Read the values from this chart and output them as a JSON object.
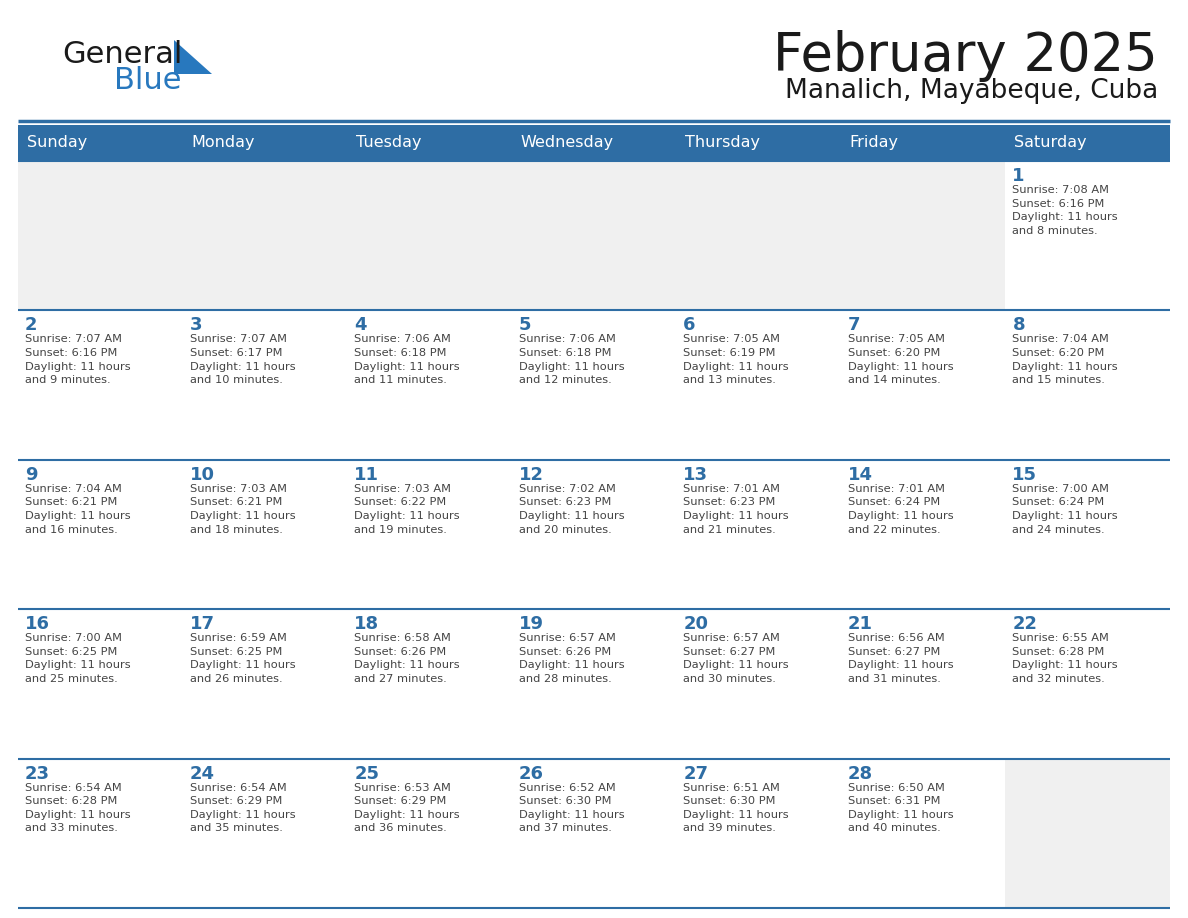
{
  "title": "February 2025",
  "subtitle": "Manalich, Mayabeque, Cuba",
  "header_bg": "#2E6DA4",
  "header_text_color": "#FFFFFF",
  "cell_bg_light": "#F0F0F0",
  "cell_bg_white": "#FFFFFF",
  "grid_line_color": "#2E6DA4",
  "day_headers": [
    "Sunday",
    "Monday",
    "Tuesday",
    "Wednesday",
    "Thursday",
    "Friday",
    "Saturday"
  ],
  "title_color": "#1a1a1a",
  "subtitle_color": "#1a1a1a",
  "number_color": "#2E6DA4",
  "text_color": "#444444",
  "logo_general_color": "#1a1a1a",
  "logo_blue_color": "#2878BE",
  "weeks": [
    [
      {
        "day": null,
        "info": null
      },
      {
        "day": null,
        "info": null
      },
      {
        "day": null,
        "info": null
      },
      {
        "day": null,
        "info": null
      },
      {
        "day": null,
        "info": null
      },
      {
        "day": null,
        "info": null
      },
      {
        "day": 1,
        "info": "Sunrise: 7:08 AM\nSunset: 6:16 PM\nDaylight: 11 hours\nand 8 minutes."
      }
    ],
    [
      {
        "day": 2,
        "info": "Sunrise: 7:07 AM\nSunset: 6:16 PM\nDaylight: 11 hours\nand 9 minutes."
      },
      {
        "day": 3,
        "info": "Sunrise: 7:07 AM\nSunset: 6:17 PM\nDaylight: 11 hours\nand 10 minutes."
      },
      {
        "day": 4,
        "info": "Sunrise: 7:06 AM\nSunset: 6:18 PM\nDaylight: 11 hours\nand 11 minutes."
      },
      {
        "day": 5,
        "info": "Sunrise: 7:06 AM\nSunset: 6:18 PM\nDaylight: 11 hours\nand 12 minutes."
      },
      {
        "day": 6,
        "info": "Sunrise: 7:05 AM\nSunset: 6:19 PM\nDaylight: 11 hours\nand 13 minutes."
      },
      {
        "day": 7,
        "info": "Sunrise: 7:05 AM\nSunset: 6:20 PM\nDaylight: 11 hours\nand 14 minutes."
      },
      {
        "day": 8,
        "info": "Sunrise: 7:04 AM\nSunset: 6:20 PM\nDaylight: 11 hours\nand 15 minutes."
      }
    ],
    [
      {
        "day": 9,
        "info": "Sunrise: 7:04 AM\nSunset: 6:21 PM\nDaylight: 11 hours\nand 16 minutes."
      },
      {
        "day": 10,
        "info": "Sunrise: 7:03 AM\nSunset: 6:21 PM\nDaylight: 11 hours\nand 18 minutes."
      },
      {
        "day": 11,
        "info": "Sunrise: 7:03 AM\nSunset: 6:22 PM\nDaylight: 11 hours\nand 19 minutes."
      },
      {
        "day": 12,
        "info": "Sunrise: 7:02 AM\nSunset: 6:23 PM\nDaylight: 11 hours\nand 20 minutes."
      },
      {
        "day": 13,
        "info": "Sunrise: 7:01 AM\nSunset: 6:23 PM\nDaylight: 11 hours\nand 21 minutes."
      },
      {
        "day": 14,
        "info": "Sunrise: 7:01 AM\nSunset: 6:24 PM\nDaylight: 11 hours\nand 22 minutes."
      },
      {
        "day": 15,
        "info": "Sunrise: 7:00 AM\nSunset: 6:24 PM\nDaylight: 11 hours\nand 24 minutes."
      }
    ],
    [
      {
        "day": 16,
        "info": "Sunrise: 7:00 AM\nSunset: 6:25 PM\nDaylight: 11 hours\nand 25 minutes."
      },
      {
        "day": 17,
        "info": "Sunrise: 6:59 AM\nSunset: 6:25 PM\nDaylight: 11 hours\nand 26 minutes."
      },
      {
        "day": 18,
        "info": "Sunrise: 6:58 AM\nSunset: 6:26 PM\nDaylight: 11 hours\nand 27 minutes."
      },
      {
        "day": 19,
        "info": "Sunrise: 6:57 AM\nSunset: 6:26 PM\nDaylight: 11 hours\nand 28 minutes."
      },
      {
        "day": 20,
        "info": "Sunrise: 6:57 AM\nSunset: 6:27 PM\nDaylight: 11 hours\nand 30 minutes."
      },
      {
        "day": 21,
        "info": "Sunrise: 6:56 AM\nSunset: 6:27 PM\nDaylight: 11 hours\nand 31 minutes."
      },
      {
        "day": 22,
        "info": "Sunrise: 6:55 AM\nSunset: 6:28 PM\nDaylight: 11 hours\nand 32 minutes."
      }
    ],
    [
      {
        "day": 23,
        "info": "Sunrise: 6:54 AM\nSunset: 6:28 PM\nDaylight: 11 hours\nand 33 minutes."
      },
      {
        "day": 24,
        "info": "Sunrise: 6:54 AM\nSunset: 6:29 PM\nDaylight: 11 hours\nand 35 minutes."
      },
      {
        "day": 25,
        "info": "Sunrise: 6:53 AM\nSunset: 6:29 PM\nDaylight: 11 hours\nand 36 minutes."
      },
      {
        "day": 26,
        "info": "Sunrise: 6:52 AM\nSunset: 6:30 PM\nDaylight: 11 hours\nand 37 minutes."
      },
      {
        "day": 27,
        "info": "Sunrise: 6:51 AM\nSunset: 6:30 PM\nDaylight: 11 hours\nand 39 minutes."
      },
      {
        "day": 28,
        "info": "Sunrise: 6:50 AM\nSunset: 6:31 PM\nDaylight: 11 hours\nand 40 minutes."
      },
      {
        "day": null,
        "info": null
      }
    ]
  ]
}
